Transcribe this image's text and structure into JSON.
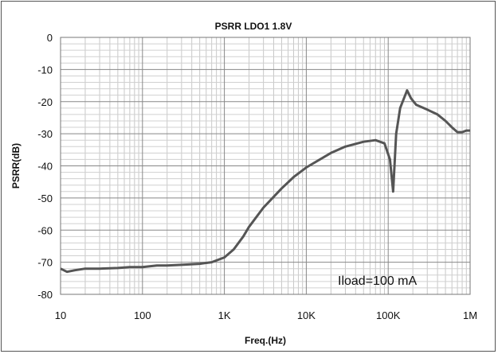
{
  "chart_data": {
    "type": "line",
    "title": "PSRR LDO1 1.8V",
    "xlabel": "Freq.(Hz)",
    "ylabel": "PSRR(dB)",
    "x_scale": "log",
    "xlim": [
      10,
      1000000
    ],
    "ylim": [
      -80,
      0
    ],
    "grid": true,
    "x_ticks": [
      10,
      100,
      1000,
      10000,
      100000,
      1000000
    ],
    "x_tick_labels": [
      "10",
      "100",
      "1K",
      "10K",
      "100K",
      "1M"
    ],
    "y_ticks": [
      0,
      -10,
      -20,
      -30,
      -40,
      -50,
      -60,
      -70,
      -80
    ],
    "y_tick_labels": [
      "0",
      "-10",
      "-20",
      "-30",
      "-40",
      "-50",
      "-60",
      "-70",
      "-80"
    ],
    "annotation": "Iload=100 mA",
    "series": [
      {
        "color": "#555555",
        "x": [
          10,
          12,
          15,
          20,
          30,
          50,
          70,
          100,
          150,
          200,
          300,
          500,
          700,
          1000,
          1300,
          1700,
          2000,
          3000,
          5000,
          7000,
          10000,
          20000,
          30000,
          50000,
          70000,
          90000,
          105000,
          115000,
          125000,
          140000,
          170000,
          190000,
          220000,
          300000,
          400000,
          500000,
          600000,
          700000,
          800000,
          900000,
          1000000
        ],
        "y": [
          -72,
          -73,
          -72.5,
          -72,
          -72,
          -71.8,
          -71.5,
          -71.5,
          -71,
          -71,
          -70.8,
          -70.5,
          -70,
          -68.5,
          -66,
          -62,
          -59,
          -53,
          -47,
          -43.5,
          -40.5,
          -36,
          -34,
          -32.5,
          -32,
          -33,
          -38,
          -48,
          -30,
          -22,
          -16.5,
          -19,
          -21,
          -22.5,
          -24,
          -26,
          -28,
          -29.5,
          -29.5,
          -29,
          -29
        ]
      }
    ]
  }
}
